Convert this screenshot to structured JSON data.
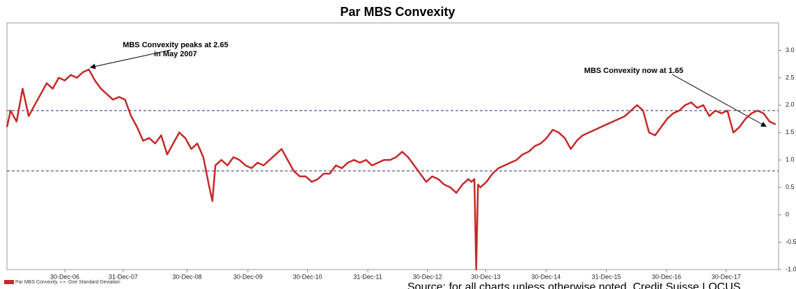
{
  "chart_data": {
    "type": "line",
    "title": "Par MBS Convexity",
    "xlim": [
      2006.04,
      2018.85
    ],
    "ylim": [
      -1,
      3.5
    ],
    "xticks": [
      {
        "value": 2007.0,
        "label": "30-Dec-06"
      },
      {
        "value": 2007.97,
        "label": "31-Dec-07"
      },
      {
        "value": 2009.03,
        "label": "30-Dec-08"
      },
      {
        "value": 2010.04,
        "label": "30-Dec-09"
      },
      {
        "value": 2011.03,
        "label": "30-Dec-10"
      },
      {
        "value": 2012.03,
        "label": "31-Dec-11"
      },
      {
        "value": 2013.02,
        "label": "30-Dec-12"
      },
      {
        "value": 2013.99,
        "label": "30-Dec-13"
      },
      {
        "value": 2014.99,
        "label": "30-Dec-14"
      },
      {
        "value": 2015.99,
        "label": "31-Dec-15"
      },
      {
        "value": 2016.99,
        "label": "30-Dec-16"
      },
      {
        "value": 2017.98,
        "label": "30-Dec-17"
      }
    ],
    "yticks": [
      {
        "value": 3.0,
        "label": "3.0"
      },
      {
        "value": 2.5,
        "label": "2.5"
      },
      {
        "value": 2.0,
        "label": "2.0"
      },
      {
        "value": 1.5,
        "label": "1.5"
      },
      {
        "value": 1.0,
        "label": "1.0"
      },
      0.5,
      0,
      -0.5,
      {
        "value": -1.0,
        "label": "-1.0"
      }
    ],
    "x": [
      2006.04,
      2006.1,
      2006.2,
      2006.3,
      2006.4,
      2006.5,
      2006.6,
      2006.7,
      2006.8,
      2006.9,
      2007.0,
      2007.1,
      2007.2,
      2007.3,
      2007.4,
      2007.5,
      2007.6,
      2007.7,
      2007.8,
      2007.9,
      2008.0,
      2008.1,
      2008.2,
      2008.3,
      2008.4,
      2008.5,
      2008.6,
      2008.7,
      2008.8,
      2008.9,
      2009.0,
      2009.1,
      2009.2,
      2009.3,
      2009.4,
      2009.45,
      2009.5,
      2009.6,
      2009.7,
      2009.8,
      2009.9,
      2010.0,
      2010.1,
      2010.2,
      2010.3,
      2010.4,
      2010.5,
      2010.6,
      2010.7,
      2010.8,
      2010.9,
      2011.0,
      2011.1,
      2011.2,
      2011.3,
      2011.4,
      2011.5,
      2011.6,
      2011.7,
      2011.8,
      2011.9,
      2012.0,
      2012.1,
      2012.2,
      2012.3,
      2012.4,
      2012.5,
      2012.6,
      2012.7,
      2012.8,
      2012.9,
      2013.0,
      2013.1,
      2013.2,
      2013.3,
      2013.4,
      2013.5,
      2013.6,
      2013.7,
      2013.75,
      2013.8,
      2013.83,
      2013.86,
      2013.9,
      2014.0,
      2014.1,
      2014.2,
      2014.3,
      2014.4,
      2014.5,
      2014.6,
      2014.7,
      2014.8,
      2014.9,
      2015.0,
      2015.1,
      2015.2,
      2015.3,
      2015.4,
      2015.5,
      2015.6,
      2015.7,
      2015.8,
      2015.9,
      2016.0,
      2016.1,
      2016.2,
      2016.3,
      2016.4,
      2016.5,
      2016.6,
      2016.7,
      2016.8,
      2016.9,
      2017.0,
      2017.1,
      2017.2,
      2017.3,
      2017.4,
      2017.5,
      2017.6,
      2017.7,
      2017.8,
      2017.9,
      2018.0,
      2018.1,
      2018.2,
      2018.3,
      2018.4,
      2018.5,
      2018.6,
      2018.7,
      2018.8
    ],
    "series": [
      {
        "name": "Par MBS Convexity",
        "color": "#c62828",
        "values": [
          1.6,
          1.9,
          1.7,
          2.3,
          1.8,
          2.0,
          2.2,
          2.4,
          2.3,
          2.5,
          2.45,
          2.55,
          2.5,
          2.6,
          2.65,
          2.45,
          2.3,
          2.2,
          2.1,
          2.15,
          2.1,
          1.8,
          1.6,
          1.35,
          1.4,
          1.3,
          1.45,
          1.1,
          1.3,
          1.5,
          1.4,
          1.2,
          1.3,
          1.05,
          0.5,
          0.25,
          0.9,
          1.0,
          0.9,
          1.05,
          1.0,
          0.9,
          0.85,
          0.95,
          0.9,
          1.0,
          1.1,
          1.2,
          1.0,
          0.8,
          0.7,
          0.7,
          0.6,
          0.65,
          0.75,
          0.75,
          0.9,
          0.85,
          0.95,
          1.0,
          0.95,
          1.0,
          0.9,
          0.95,
          1.0,
          1.0,
          1.05,
          1.15,
          1.05,
          0.9,
          0.75,
          0.6,
          0.7,
          0.65,
          0.55,
          0.5,
          0.4,
          0.55,
          0.65,
          0.6,
          0.65,
          -1.0,
          0.55,
          0.5,
          0.6,
          0.75,
          0.85,
          0.9,
          0.95,
          1.0,
          1.1,
          1.15,
          1.25,
          1.3,
          1.4,
          1.55,
          1.5,
          1.4,
          1.2,
          1.35,
          1.45,
          1.5,
          1.55,
          1.6,
          1.65,
          1.7,
          1.75,
          1.8,
          1.9,
          2.0,
          1.9,
          1.5,
          1.45,
          1.6,
          1.75,
          1.85,
          1.9,
          2.0,
          2.05,
          1.95,
          2.0,
          1.8,
          1.9,
          1.85,
          1.9,
          1.5,
          1.6,
          1.75,
          1.85,
          1.9,
          1.85,
          1.7,
          1.65
        ]
      }
    ],
    "reference_lines": {
      "name": "One Standard Deviation",
      "color": "#2a2a9a",
      "values": [
        1.9,
        0.8
      ]
    },
    "annotations": [
      {
        "lines": [
          "MBS Convexity peaks at 2.65",
          "in May 2007"
        ]
      },
      {
        "lines": [
          "MBS Convexity now at 1.65"
        ]
      }
    ],
    "source": "Source: for all charts unless otherwise noted, Credit Suisse LOCUS"
  }
}
